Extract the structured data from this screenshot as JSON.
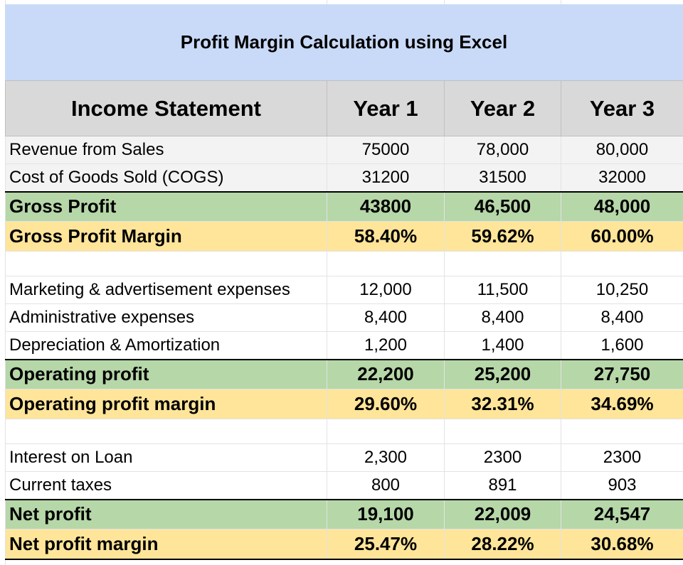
{
  "title": "Profit Margin Calculation using Excel",
  "header": {
    "label": "Income Statement",
    "years": [
      "Year 1",
      "Year 2",
      "Year 3"
    ]
  },
  "rows": {
    "revenue": {
      "label": "Revenue from Sales",
      "values": [
        "75000",
        "78,000",
        "80,000"
      ]
    },
    "cogs": {
      "label": "Cost of Goods Sold (COGS)",
      "values": [
        "31200",
        "31500",
        "32000"
      ]
    },
    "gross_profit": {
      "label": "Gross Profit",
      "values": [
        "43800",
        "46,500",
        "48,000"
      ]
    },
    "gross_margin": {
      "label": "Gross Profit Margin",
      "values": [
        "58.40%",
        "59.62%",
        "60.00%"
      ]
    },
    "marketing": {
      "label": "Marketing & advertisement expenses",
      "values": [
        "12,000",
        "11,500",
        "10,250"
      ]
    },
    "admin": {
      "label": "Administrative expenses",
      "values": [
        "8,400",
        "8,400",
        "8,400"
      ]
    },
    "depreciation": {
      "label": "Depreciation & Amortization",
      "values": [
        "1,200",
        "1,400",
        "1,600"
      ]
    },
    "operating_profit": {
      "label": "Operating profit",
      "values": [
        "22,200",
        "25,200",
        "27,750"
      ]
    },
    "operating_margin": {
      "label": "Operating profit margin",
      "values": [
        "29.60%",
        "32.31%",
        "34.69%"
      ]
    },
    "interest": {
      "label": "Interest on Loan",
      "values": [
        "2,300",
        "2300",
        "2300"
      ]
    },
    "taxes": {
      "label": "Current taxes",
      "values": [
        "800",
        "891",
        "903"
      ]
    },
    "net_profit": {
      "label": "Net profit",
      "values": [
        "19,100",
        "22,009",
        "24,547"
      ]
    },
    "net_margin": {
      "label": "Net profit margin",
      "values": [
        "25.47%",
        "28.22%",
        "30.68%"
      ]
    }
  },
  "colors": {
    "title_bg": "#c9daf8",
    "header_bg": "#d9d9d9",
    "profit_bg": "#b6d7a8",
    "margin_bg": "#ffe599"
  }
}
